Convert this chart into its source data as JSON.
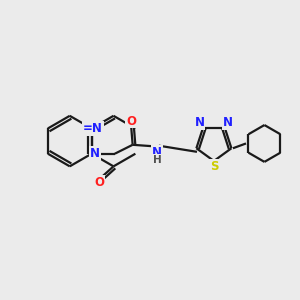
{
  "bg_color": "#ebebeb",
  "bond_color": "#1a1a1a",
  "atom_colors": {
    "N": "#2020ff",
    "O": "#ff2020",
    "S": "#cccc00",
    "H": "#505050"
  },
  "figsize": [
    3.0,
    3.0
  ],
  "dpi": 100,
  "xlim": [
    0,
    10
  ],
  "ylim": [
    0,
    10
  ]
}
